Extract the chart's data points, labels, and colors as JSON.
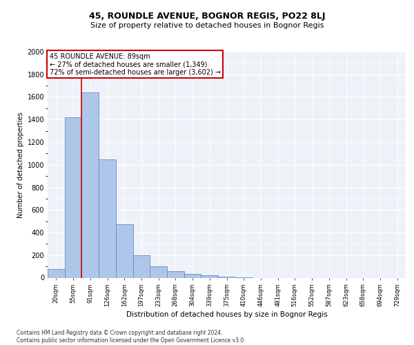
{
  "title1": "45, ROUNDLE AVENUE, BOGNOR REGIS, PO22 8LJ",
  "title2": "Size of property relative to detached houses in Bognor Regis",
  "xlabel": "Distribution of detached houses by size in Bognor Regis",
  "ylabel": "Number of detached properties",
  "annotation_line1": "45 ROUNDLE AVENUE: 89sqm",
  "annotation_line2": "← 27% of detached houses are smaller (1,349)",
  "annotation_line3": "72% of semi-detached houses are larger (3,602) →",
  "footer1": "Contains HM Land Registry data © Crown copyright and database right 2024.",
  "footer2": "Contains public sector information licensed under the Open Government Licence v3.0.",
  "bar_labels": [
    "20sqm",
    "55sqm",
    "91sqm",
    "126sqm",
    "162sqm",
    "197sqm",
    "233sqm",
    "268sqm",
    "304sqm",
    "339sqm",
    "375sqm",
    "410sqm",
    "446sqm",
    "481sqm",
    "516sqm",
    "552sqm",
    "587sqm",
    "623sqm",
    "658sqm",
    "694sqm",
    "729sqm"
  ],
  "bar_values": [
    75,
    1420,
    1640,
    1050,
    475,
    200,
    100,
    60,
    35,
    20,
    8,
    5,
    0,
    0,
    0,
    0,
    0,
    0,
    0,
    0,
    0
  ],
  "bar_color": "#aec6e8",
  "bar_edge_color": "#5b8dc8",
  "property_line_x": 2,
  "property_line_color": "#cc0000",
  "annotation_box_color": "#cc0000",
  "background_color": "#eef2f8",
  "ylim": [
    0,
    2000
  ],
  "yticks": [
    0,
    200,
    400,
    600,
    800,
    1000,
    1200,
    1400,
    1600,
    1800,
    2000
  ],
  "grid_color": "#d8dde8"
}
